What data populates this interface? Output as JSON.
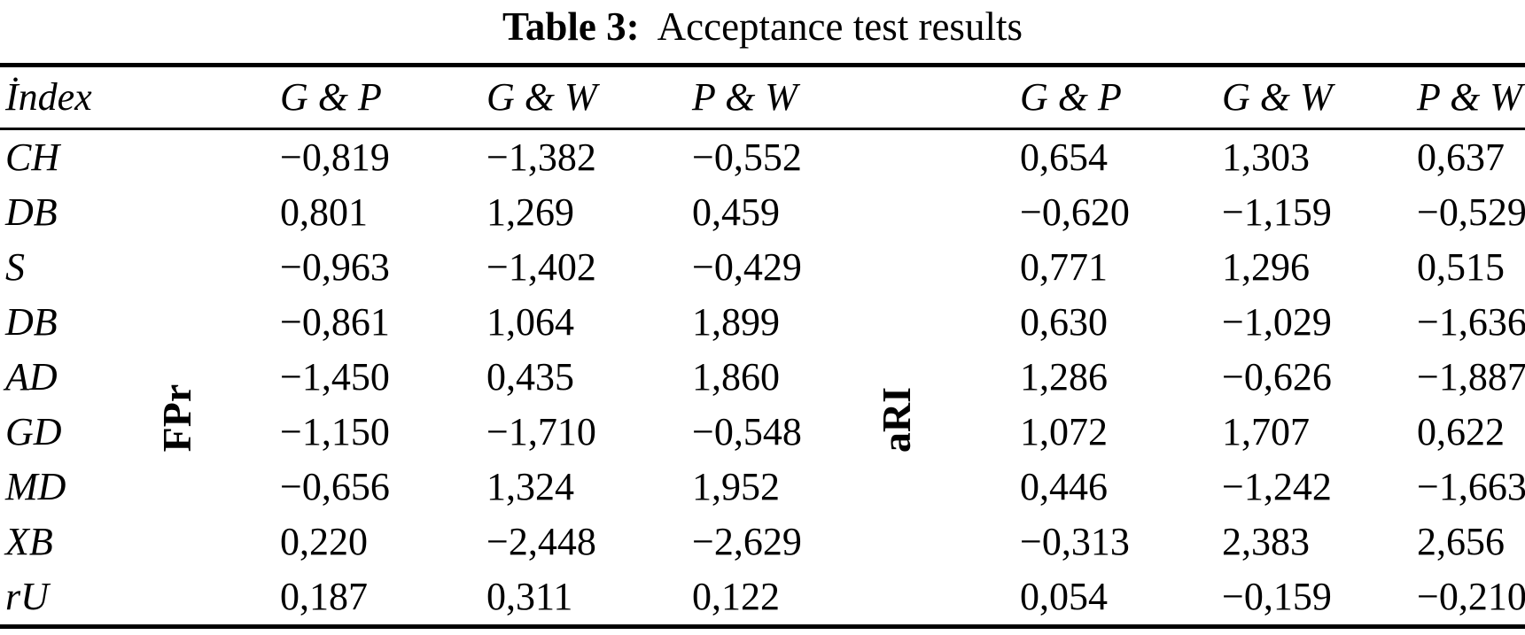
{
  "caption": {
    "label": "Table 3:",
    "text": "Acceptance test results"
  },
  "colors": {
    "text": "#000000",
    "background": "#ffffff"
  },
  "table": {
    "index_header": "İndex",
    "groups": [
      {
        "label": "FPr",
        "columns": [
          "G & P",
          "G & W",
          "P & W"
        ]
      },
      {
        "label": "aRI",
        "columns": [
          "G & P",
          "G & W",
          "P & W"
        ]
      }
    ],
    "rows": [
      {
        "index": "CH",
        "FPr": [
          "−0,819",
          "−1,382",
          "−0,552"
        ],
        "aRI": [
          "0,654",
          "1,303",
          "0,637"
        ]
      },
      {
        "index": "DB",
        "FPr": [
          "0,801",
          "1,269",
          "0,459"
        ],
        "aRI": [
          "−0,620",
          "−1,159",
          "−0,529"
        ]
      },
      {
        "index": "S",
        "FPr": [
          "−0,963",
          "−1,402",
          "−0,429"
        ],
        "aRI": [
          "0,771",
          "1,296",
          "0,515"
        ]
      },
      {
        "index": "DB",
        "FPr": [
          "−0,861",
          "1,064",
          "1,899"
        ],
        "aRI": [
          "0,630",
          "−1,029",
          "−1,636"
        ]
      },
      {
        "index": "AD",
        "FPr": [
          "−1,450",
          "0,435",
          "1,860"
        ],
        "aRI": [
          "1,286",
          "−0,626",
          "−1,887"
        ]
      },
      {
        "index": "GD",
        "FPr": [
          "−1,150",
          "−1,710",
          "−0,548"
        ],
        "aRI": [
          "1,072",
          "1,707",
          "0,622"
        ]
      },
      {
        "index": "MD",
        "FPr": [
          "−0,656",
          "1,324",
          "1,952"
        ],
        "aRI": [
          "0,446",
          "−1,242",
          "−1,663"
        ]
      },
      {
        "index": "XB",
        "FPr": [
          "0,220",
          "−2,448",
          "−2,629"
        ],
        "aRI": [
          "−0,313",
          "2,383",
          "2,656"
        ]
      },
      {
        "index": "rU",
        "FPr": [
          "0,187",
          "0,311",
          "0,122"
        ],
        "aRI": [
          "0,054",
          "−0,159",
          "−0,210"
        ]
      }
    ]
  }
}
